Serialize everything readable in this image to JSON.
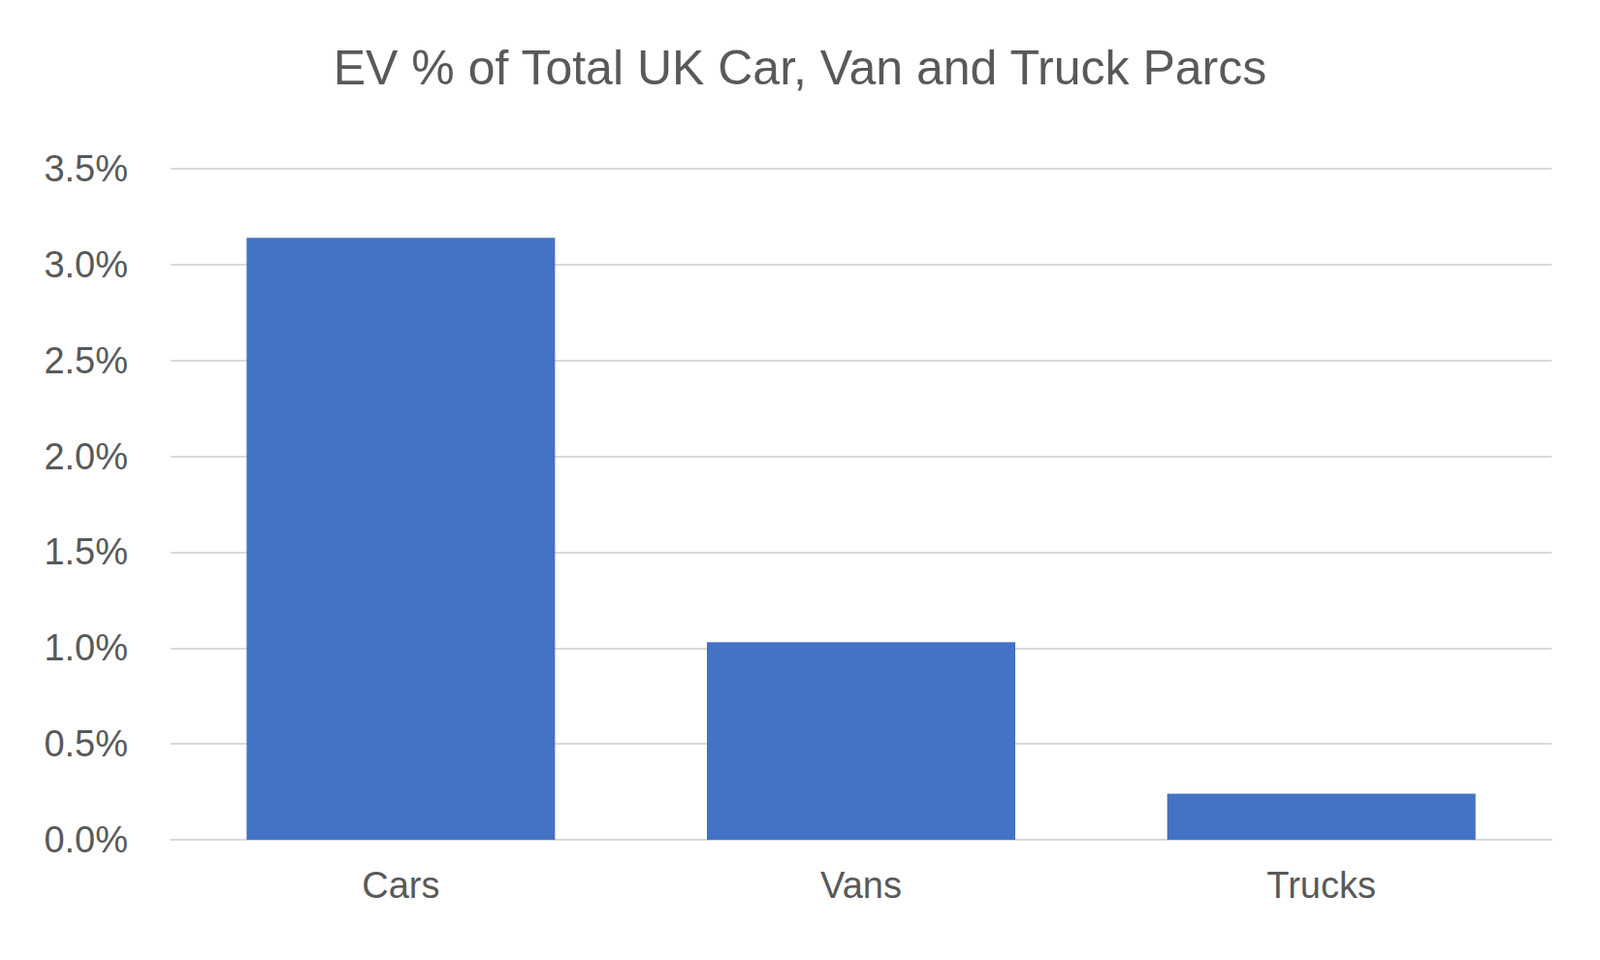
{
  "chart_data": {
    "type": "bar",
    "title": "EV % of Total UK Car, Van and Truck Parcs",
    "categories": [
      "Cars",
      "Vans",
      "Trucks"
    ],
    "values": [
      3.14,
      1.03,
      0.24
    ],
    "color": "#4472c4",
    "ylim": [
      0,
      3.5
    ],
    "yticks": [
      {
        "value": 0,
        "label": "0.0%"
      },
      {
        "value": 0.5,
        "label": "0.5%"
      },
      {
        "value": 1,
        "label": "1.0%"
      },
      {
        "value": 1.5,
        "label": "1.5%"
      },
      {
        "value": 2,
        "label": "2.0%"
      },
      {
        "value": 2.5,
        "label": "2.5%"
      },
      {
        "value": 3,
        "label": "3.0%"
      },
      {
        "value": 3.5,
        "label": "3.5%"
      }
    ],
    "grid": true
  }
}
